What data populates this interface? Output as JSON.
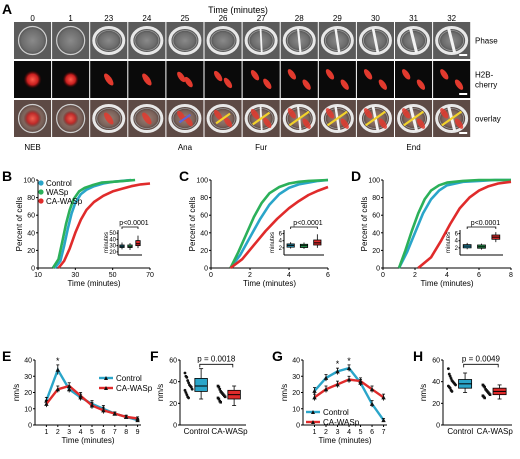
{
  "panel_letters": [
    "A",
    "B",
    "C",
    "D",
    "E",
    "F",
    "G",
    "H"
  ],
  "panel_a": {
    "title": "Time (minutes)",
    "timepoints": [
      "0",
      "1",
      "23",
      "24",
      "25",
      "26",
      "27",
      "28",
      "29",
      "30",
      "31",
      "32"
    ],
    "row_labels": [
      "Phase",
      "H2B-\ncherry",
      "overlay"
    ],
    "stage_labels": [
      {
        "col": 0,
        "text": "NEB"
      },
      {
        "col": 4,
        "text": "Ana"
      },
      {
        "col": 6,
        "text": "Fur"
      },
      {
        "col": 10,
        "text": "End"
      }
    ]
  },
  "chart_data": [
    {
      "id": "B",
      "type": "line",
      "xlabel": "Time (minutes)",
      "ylabel": "Percent of cells",
      "xlim": [
        10,
        70
      ],
      "ylim": [
        0,
        100
      ],
      "xticks": [
        10,
        30,
        50,
        70
      ],
      "yticks": [
        0,
        20,
        40,
        60,
        80,
        100
      ],
      "legend_position": "top-left",
      "series": [
        {
          "name": "Control",
          "color": "#2aa5c9",
          "x": [
            19,
            22,
            24,
            26,
            28,
            30,
            33,
            36,
            40,
            45,
            50,
            55,
            60
          ],
          "y": [
            0,
            8,
            25,
            45,
            62,
            74,
            84,
            89,
            93,
            96,
            98,
            99,
            100
          ]
        },
        {
          "name": "WASp",
          "color": "#2bb05a",
          "x": [
            18,
            21,
            23,
            25,
            27,
            29,
            32,
            35,
            39,
            44,
            50,
            56,
            62
          ],
          "y": [
            0,
            10,
            30,
            50,
            66,
            78,
            87,
            91,
            94,
            97,
            98,
            99,
            100
          ]
        },
        {
          "name": "CA-WASp",
          "color": "#e02b2b",
          "x": [
            21,
            24,
            27,
            30,
            33,
            36,
            40,
            45,
            50,
            55,
            60,
            65,
            70
          ],
          "y": [
            0,
            8,
            22,
            40,
            55,
            66,
            75,
            82,
            87,
            90,
            93,
            95,
            96
          ]
        }
      ],
      "inset": {
        "type": "box",
        "ylabel": "minutes",
        "pvalue": "p<0.0001",
        "yticks": [
          20,
          30,
          40,
          50
        ],
        "ylim": [
          15,
          55
        ],
        "boxes": [
          {
            "color": "#2aa5c9",
            "min": 24,
            "q1": 27,
            "median": 29,
            "q3": 31,
            "max": 35
          },
          {
            "color": "#2bb05a",
            "min": 23,
            "q1": 27,
            "median": 28,
            "q3": 31,
            "max": 34
          },
          {
            "color": "#e02b2b",
            "min": 26,
            "q1": 30,
            "median": 33,
            "q3": 38,
            "max": 46
          }
        ]
      }
    },
    {
      "id": "C",
      "type": "line",
      "xlabel": "Time (minutes)",
      "ylabel": "Percent of cells",
      "xlim": [
        0,
        6
      ],
      "ylim": [
        0,
        100
      ],
      "xticks": [
        0,
        2,
        4,
        6
      ],
      "yticks": [
        0,
        20,
        40,
        60,
        80,
        100
      ],
      "series": [
        {
          "color": "#2aa5c9",
          "x": [
            1.0,
            1.5,
            2.0,
            2.5,
            3.0,
            3.5,
            4.0,
            4.5,
            5.0,
            5.5,
            6.0
          ],
          "y": [
            0,
            15,
            35,
            55,
            72,
            84,
            91,
            95,
            97,
            99,
            100
          ]
        },
        {
          "color": "#2bb05a",
          "x": [
            1.0,
            1.4,
            1.8,
            2.2,
            2.6,
            3.0,
            3.5,
            4.0,
            4.5,
            5.0,
            6.0
          ],
          "y": [
            0,
            18,
            38,
            58,
            74,
            85,
            92,
            96,
            98,
            99,
            100
          ]
        },
        {
          "color": "#e02b2b",
          "x": [
            1.0,
            1.6,
            2.2,
            2.8,
            3.4,
            4.0,
            4.5,
            5.0,
            5.5,
            6.0
          ],
          "y": [
            0,
            10,
            26,
            42,
            56,
            68,
            76,
            83,
            88,
            92
          ]
        }
      ],
      "inset": {
        "type": "box",
        "ylabel": "minutes",
        "pvalue": "p<0.0001",
        "yticks": [
          2,
          4,
          6
        ],
        "ylim": [
          0,
          7
        ],
        "boxes": [
          {
            "color": "#2aa5c9",
            "min": 1.8,
            "q1": 2.2,
            "median": 2.7,
            "q3": 3.1,
            "max": 3.6
          },
          {
            "color": "#2bb05a",
            "min": 1.7,
            "q1": 2.1,
            "median": 2.6,
            "q3": 3.0,
            "max": 3.5
          },
          {
            "color": "#e02b2b",
            "min": 2.0,
            "q1": 2.8,
            "median": 3.4,
            "q3": 4.2,
            "max": 5.8
          }
        ]
      }
    },
    {
      "id": "D",
      "type": "line",
      "xlabel": "Time (minutes)",
      "ylabel": "Percent of cells",
      "xlim": [
        0,
        8
      ],
      "ylim": [
        0,
        100
      ],
      "xticks": [
        0,
        2,
        4,
        6,
        8
      ],
      "yticks": [
        0,
        20,
        40,
        60,
        80,
        100
      ],
      "series": [
        {
          "color": "#2aa5c9",
          "x": [
            1.0,
            1.5,
            2.0,
            2.5,
            3.0,
            3.5,
            4.0,
            5.0,
            6.0,
            7.0,
            8.0
          ],
          "y": [
            0,
            18,
            40,
            62,
            78,
            88,
            94,
            98,
            99,
            100,
            100
          ]
        },
        {
          "color": "#2bb05a",
          "x": [
            1.0,
            1.4,
            1.8,
            2.2,
            2.6,
            3.0,
            3.5,
            4.0,
            5.0,
            6.0,
            8.0
          ],
          "y": [
            0,
            20,
            42,
            62,
            78,
            88,
            94,
            97,
            99,
            100,
            100
          ]
        },
        {
          "color": "#e02b2b",
          "x": [
            2.2,
            3.0,
            3.6,
            4.2,
            4.8,
            5.4,
            6.0,
            6.6,
            7.2,
            8.0
          ],
          "y": [
            0,
            12,
            30,
            50,
            68,
            80,
            88,
            93,
            96,
            98
          ]
        }
      ],
      "inset": {
        "type": "box",
        "ylabel": "minutes",
        "pvalue": "p<0.0001",
        "yticks": [
          2,
          4,
          6
        ],
        "ylim": [
          0,
          7
        ],
        "boxes": [
          {
            "color": "#2aa5c9",
            "min": 1.6,
            "q1": 2.0,
            "median": 2.5,
            "q3": 2.9,
            "max": 3.4
          },
          {
            "color": "#2bb05a",
            "min": 1.5,
            "q1": 1.9,
            "median": 2.3,
            "q3": 2.8,
            "max": 3.2
          },
          {
            "color": "#e02b2b",
            "min": 3.6,
            "q1": 4.4,
            "median": 5.0,
            "q3": 5.6,
            "max": 6.4
          }
        ]
      }
    },
    {
      "id": "E",
      "type": "line",
      "xlabel": "Time (minutes)",
      "ylabel": "nm/s",
      "xlim": [
        0,
        9.3
      ],
      "ylim": [
        0,
        40
      ],
      "xticks": [
        1,
        2,
        3,
        4,
        5,
        6,
        7,
        8,
        9
      ],
      "yticks": [
        0,
        10,
        20,
        30,
        40
      ],
      "legend_position": "right",
      "star_at_x": [
        2
      ],
      "series": [
        {
          "name": "Control",
          "color": "#2aa5c9",
          "x": [
            1,
            2,
            3,
            4,
            5,
            6,
            7,
            8,
            9
          ],
          "y": [
            15,
            34,
            22,
            17,
            13,
            10,
            7,
            5,
            3
          ],
          "err": [
            2,
            3,
            2,
            2,
            2,
            2,
            1,
            1,
            1
          ]
        },
        {
          "name": "CA-WASp",
          "color": "#e02b2b",
          "x": [
            1,
            2,
            3,
            4,
            5,
            6,
            7,
            8,
            9
          ],
          "y": [
            13,
            22,
            24,
            18,
            12,
            9,
            7,
            5,
            4
          ],
          "err": [
            2,
            2,
            2,
            2,
            2,
            2,
            1,
            1,
            1
          ]
        }
      ]
    },
    {
      "id": "F",
      "type": "scatter",
      "ylabel": "nm/s",
      "ylim": [
        0,
        60
      ],
      "yticks": [
        0,
        20,
        40,
        60
      ],
      "categories": [
        "Control",
        "CA-WASp"
      ],
      "pvalue": "p = 0.0018",
      "boxes": [
        {
          "color": "#2aa5c9",
          "min": 24,
          "q1": 31,
          "median": 36,
          "q3": 43,
          "max": 52
        },
        {
          "color": "#e02b2b",
          "min": 18,
          "q1": 24,
          "median": 28,
          "q3": 32,
          "max": 36
        }
      ],
      "points": [
        {
          "group": 0,
          "values": [
            48,
            45,
            44,
            41,
            39,
            37,
            36,
            35,
            33,
            32,
            30,
            28,
            26,
            25
          ]
        },
        {
          "group": 1,
          "values": [
            36,
            35,
            33,
            31,
            30,
            29,
            28,
            27,
            26,
            25,
            24,
            22,
            21
          ]
        }
      ]
    },
    {
      "id": "G",
      "type": "line",
      "xlabel": "Time (minutes)",
      "ylabel": "nm/s",
      "xlim": [
        0,
        7.3
      ],
      "ylim": [
        0,
        40
      ],
      "xticks": [
        1,
        2,
        3,
        4,
        5,
        6,
        7
      ],
      "yticks": [
        0,
        10,
        20,
        30,
        40
      ],
      "legend_position": "bottom-left",
      "star_at_x": [
        3,
        4
      ],
      "series": [
        {
          "name": "Control",
          "color": "#2aa5c9",
          "x": [
            1,
            2,
            3,
            4,
            5,
            6,
            7
          ],
          "y": [
            21,
            29,
            33,
            35,
            26,
            13,
            3
          ],
          "err": [
            2,
            2,
            2,
            2,
            2,
            2,
            1
          ]
        },
        {
          "name": "CA-WASp",
          "color": "#e02b2b",
          "x": [
            1,
            2,
            3,
            4,
            5,
            6,
            7
          ],
          "y": [
            17,
            22,
            25,
            28,
            27,
            22,
            17
          ],
          "err": [
            2,
            2,
            2,
            2,
            2,
            2,
            2
          ]
        }
      ]
    },
    {
      "id": "H",
      "type": "scatter",
      "ylabel": "nm/s",
      "ylim": [
        0,
        60
      ],
      "yticks": [
        0,
        20,
        40,
        60
      ],
      "categories": [
        "Control",
        "CA-WASp"
      ],
      "pvalue": "p = 0.0049",
      "boxes": [
        {
          "color": "#2aa5c9",
          "min": 30,
          "q1": 34,
          "median": 38,
          "q3": 42,
          "max": 48
        },
        {
          "color": "#e02b2b",
          "min": 24,
          "q1": 28,
          "median": 31,
          "q3": 34,
          "max": 37
        }
      ],
      "points": [
        {
          "group": 0,
          "values": [
            52,
            47,
            45,
            43,
            41,
            40,
            39,
            38,
            37,
            36,
            35,
            34,
            32,
            31
          ]
        },
        {
          "group": 1,
          "values": [
            37,
            36,
            35,
            33,
            32,
            31,
            30,
            29,
            28,
            27,
            26,
            25
          ]
        }
      ]
    }
  ]
}
